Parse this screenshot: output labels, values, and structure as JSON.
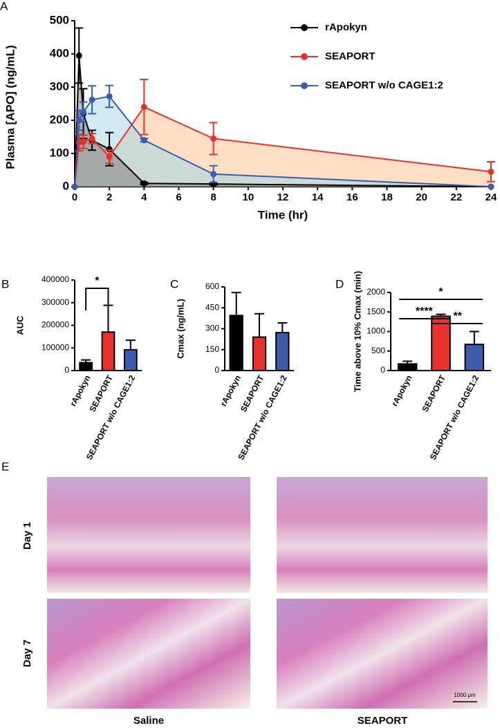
{
  "chart_data": [
    {
      "type": "line",
      "panel_label": "A",
      "xlabel": "Time (hr)",
      "ylabel": "Plasma [APO] (ng/mL)",
      "x": [
        0,
        0.25,
        0.5,
        1,
        2,
        4,
        8,
        24
      ],
      "series": [
        {
          "name": "rApokyn",
          "color": "#000000",
          "area_color": "#7a7a7a",
          "values": [
            0,
            395,
            220,
            140,
            113,
            10,
            8,
            0
          ],
          "errors": [
            0,
            83,
            75,
            30,
            50,
            3,
            3,
            0
          ]
        },
        {
          "name": "SEAPORT",
          "color": "#e8312a",
          "area_color": "#fbc08a",
          "values": [
            0,
            133,
            135,
            145,
            90,
            240,
            145,
            45
          ],
          "errors": [
            0,
            25,
            20,
            15,
            20,
            83,
            48,
            30
          ]
        },
        {
          "name": "SEAPORT w/o CAGE1:2",
          "color": "#3b5bab",
          "area_color": "#9fd6e8",
          "values": [
            0,
            200,
            225,
            262,
            272,
            140,
            38,
            0
          ],
          "errors": [
            0,
            30,
            30,
            42,
            33,
            5,
            25,
            0
          ]
        }
      ],
      "xlim": [
        0,
        24
      ],
      "xticks": [
        0,
        2,
        4,
        6,
        8,
        10,
        12,
        14,
        16,
        18,
        20,
        22,
        24
      ],
      "ylim": [
        0,
        500
      ],
      "yticks": [
        0,
        100,
        200,
        300,
        400,
        500
      ]
    },
    {
      "type": "bar",
      "panel_label": "B",
      "ylabel": "AUC",
      "categories": [
        "rApokyn",
        "SEAPORT",
        "SEAPORT w/o CAGE1:2"
      ],
      "colors": [
        "#000000",
        "#e8312a",
        "#3b5bab"
      ],
      "values": [
        35000,
        170000,
        92000
      ],
      "errors": [
        12000,
        118000,
        42000
      ],
      "ylim": [
        0,
        400000
      ],
      "yticks": [
        0,
        100000,
        200000,
        300000,
        400000
      ],
      "significance": [
        {
          "pair": [
            "rApokyn",
            "SEAPORT"
          ],
          "label": "*"
        }
      ]
    },
    {
      "type": "bar",
      "panel_label": "C",
      "ylabel": "Cmax (ng/mL)",
      "categories": [
        "rApokyn",
        "SEAPORT",
        "SEAPORT w/o CAGE1:2"
      ],
      "colors": [
        "#000000",
        "#e8312a",
        "#3b5bab"
      ],
      "values": [
        395,
        240,
        272
      ],
      "errors": [
        165,
        168,
        70
      ],
      "ylim": [
        0,
        600
      ],
      "yticks": [
        0,
        150,
        300,
        450,
        600
      ]
    },
    {
      "type": "bar",
      "panel_label": "D",
      "ylabel": "Time above 10% Cmax (min)",
      "categories": [
        "rApokyn",
        "SEAPORT",
        "SEAPORT w/o CAGE1:2"
      ],
      "colors": [
        "#000000",
        "#e8312a",
        "#3b5bab"
      ],
      "values": [
        170,
        1390,
        670
      ],
      "errors": [
        70,
        50,
        330
      ],
      "ylim": [
        0,
        2000
      ],
      "yticks": [
        0,
        500,
        1000,
        1500,
        2000
      ],
      "significance": [
        {
          "pair": [
            "rApokyn",
            "SEAPORT w/o CAGE1:2"
          ],
          "label": "*"
        },
        {
          "pair": [
            "rApokyn",
            "SEAPORT"
          ],
          "label": "****"
        },
        {
          "pair": [
            "SEAPORT",
            "SEAPORT w/o CAGE1:2"
          ],
          "label": "**"
        }
      ]
    }
  ],
  "histology": {
    "panel_label": "E",
    "rows": [
      "Day 1",
      "Day 7"
    ],
    "columns": [
      "Saline",
      "SEAPORT"
    ],
    "scale_bar": "1000 μm"
  }
}
